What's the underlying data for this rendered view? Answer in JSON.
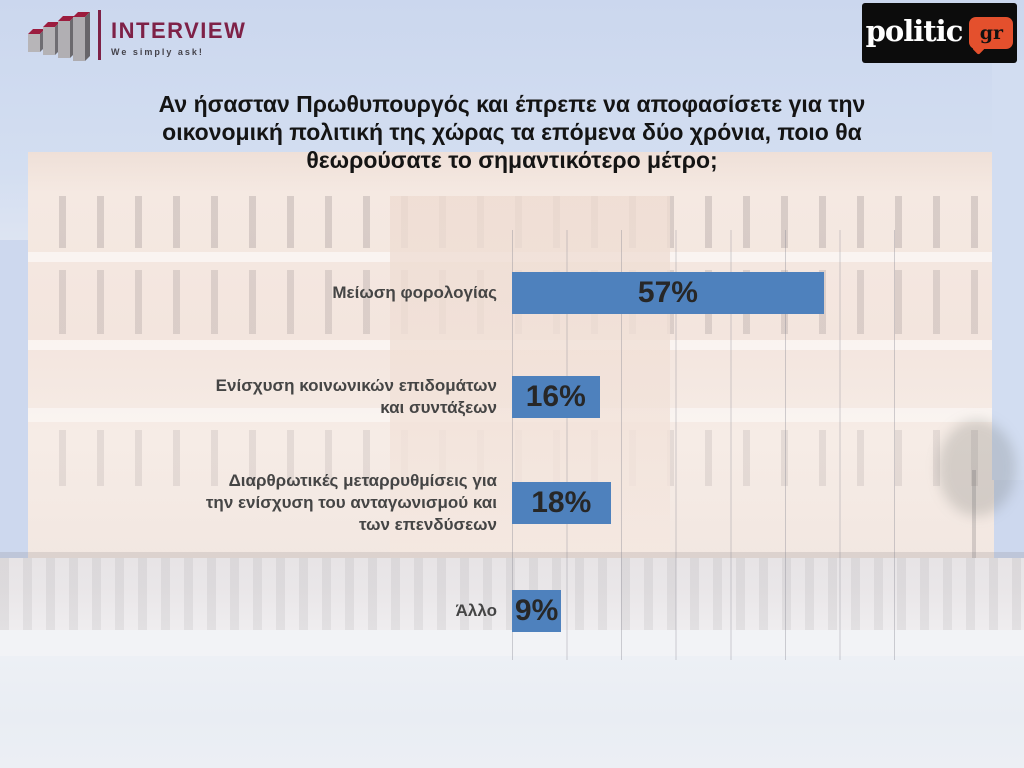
{
  "branding": {
    "interview": {
      "name": "INTERVIEW",
      "tagline": "We simply ask!",
      "brand_color": "#7E2147"
    },
    "politic": {
      "name": "politic",
      "badge": "gr",
      "badge_color": "#E4502D",
      "box_color": "#0c0c0c"
    }
  },
  "title": "Αν ήσασταν Πρωθυπουργός και έπρεπε να αποφασίσετε για την οικονομική πολιτική της χώρας τα επόμενα δύο χρόνια, ποιο θα θεωρούσατε το σημαντικότερο μέτρο;",
  "chart_data": {
    "type": "bar",
    "orientation": "horizontal",
    "categories": [
      "Μείωση φορολογίας",
      "Ενίσχυση κοινωνικών επιδομάτων\nκαι συντάξεων",
      "Διαρθρωτικές μεταρρυθμίσεις για\nτην ενίσχυση του ανταγωνισμού και\nτων επενδύσεων",
      "Άλλο"
    ],
    "values": [
      57,
      16,
      18,
      9
    ],
    "value_labels": [
      "57%",
      "16%",
      "18%",
      "9%"
    ],
    "bar_color": "#4E81BD",
    "xlim": [
      0,
      70
    ],
    "gridline_step": 10,
    "grid": "vertical gridlines on",
    "legend": "none",
    "background_note": "faded photo of the Greek Parliament building"
  }
}
